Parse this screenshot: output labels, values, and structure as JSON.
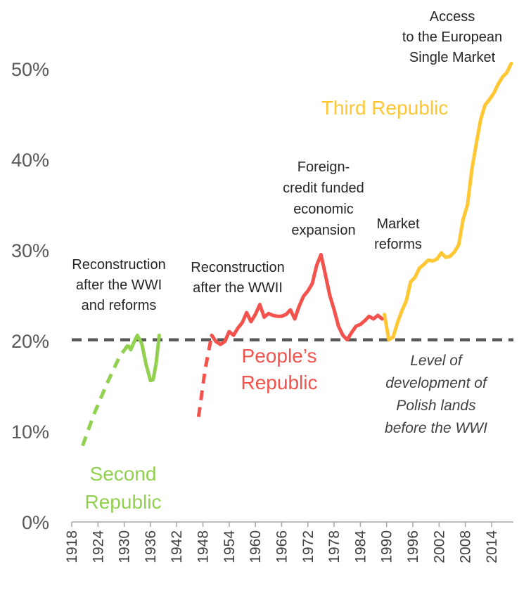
{
  "chart_data": {
    "type": "line",
    "ylim": [
      0,
      52
    ],
    "xlim": [
      1918,
      2019
    ],
    "y_ticks": [
      "0%",
      "10%",
      "20%",
      "30%",
      "40%",
      "50%"
    ],
    "y_tick_values": [
      0,
      10,
      20,
      30,
      40,
      50
    ],
    "x_ticks": [
      "1918",
      "1924",
      "1930",
      "1936",
      "1942",
      "1948",
      "1954",
      "1960",
      "1966",
      "1972",
      "1978",
      "1984",
      "1990",
      "1996",
      "2002",
      "2008",
      "2014"
    ],
    "x_tick_values": [
      1918,
      1924,
      1930,
      1936,
      1942,
      1948,
      1954,
      1960,
      1966,
      1972,
      1978,
      1984,
      1990,
      1996,
      2002,
      2008,
      2014
    ],
    "reference_line": {
      "y": 20.1,
      "label": [
        "Level of",
        "development of",
        "Polish lands",
        "before the WWI"
      ],
      "color": "#595959"
    },
    "series": [
      {
        "name": "Second Republic",
        "color": "#92D050",
        "label_lines": [
          "Second",
          "Republic"
        ],
        "dashed": [
          [
            1920.5,
            8.4
          ],
          [
            1923,
            11.8
          ],
          [
            1926,
            15.2
          ],
          [
            1929,
            18.3
          ],
          [
            1931,
            19.6
          ]
        ],
        "solid": [
          [
            1931,
            19.4
          ],
          [
            1931.5,
            19.0
          ],
          [
            1932.2,
            19.8
          ],
          [
            1933,
            20.6
          ],
          [
            1934,
            19.7
          ],
          [
            1935,
            17.4
          ],
          [
            1936,
            15.6
          ],
          [
            1936.6,
            15.7
          ],
          [
            1937.3,
            17.5
          ],
          [
            1938,
            20.6
          ]
        ]
      },
      {
        "name": "People's Republic",
        "color": "#F4524D",
        "label_lines": [
          "People’s",
          "Republic"
        ],
        "dashed": [
          [
            1947,
            11.6
          ],
          [
            1948.5,
            16.8
          ],
          [
            1950,
            20.6
          ]
        ],
        "solid": [
          [
            1950,
            20.6
          ],
          [
            1951,
            19.9
          ],
          [
            1952,
            19.6
          ],
          [
            1953,
            19.9
          ],
          [
            1954,
            21.0
          ],
          [
            1955,
            20.6
          ],
          [
            1956,
            21.4
          ],
          [
            1957,
            22.0
          ],
          [
            1958,
            23.1
          ],
          [
            1959,
            22.1
          ],
          [
            1960,
            22.9
          ],
          [
            1961,
            24.0
          ],
          [
            1962,
            22.6
          ],
          [
            1963,
            23.0
          ],
          [
            1964,
            22.8
          ],
          [
            1965,
            22.7
          ],
          [
            1966,
            22.7
          ],
          [
            1967,
            22.9
          ],
          [
            1968,
            23.4
          ],
          [
            1969,
            22.4
          ],
          [
            1970,
            23.8
          ],
          [
            1971,
            24.9
          ],
          [
            1972,
            25.5
          ],
          [
            1973,
            26.3
          ],
          [
            1974,
            28.3
          ],
          [
            1975,
            29.5
          ],
          [
            1976,
            27.3
          ],
          [
            1977,
            25.0
          ],
          [
            1978,
            23.4
          ],
          [
            1979,
            21.6
          ],
          [
            1980,
            20.6
          ],
          [
            1981,
            20.1
          ],
          [
            1982,
            20.9
          ],
          [
            1983,
            21.6
          ],
          [
            1984,
            21.8
          ],
          [
            1985,
            22.2
          ],
          [
            1986,
            22.7
          ],
          [
            1987,
            22.4
          ],
          [
            1988,
            22.8
          ],
          [
            1989,
            22.4
          ]
        ]
      },
      {
        "name": "Third Republic",
        "color": "#FFC733",
        "label_lines": [
          "Third Republic"
        ],
        "solid": [
          [
            1989.5,
            22.9
          ],
          [
            1990.5,
            20.1
          ],
          [
            1991.5,
            20.4
          ],
          [
            1992.5,
            22.0
          ],
          [
            1993.5,
            23.3
          ],
          [
            1994.5,
            24.4
          ],
          [
            1995.5,
            26.5
          ],
          [
            1996.5,
            27.0
          ],
          [
            1997.5,
            28.0
          ],
          [
            1998.5,
            28.4
          ],
          [
            1999.5,
            28.9
          ],
          [
            2000.5,
            28.8
          ],
          [
            2001.5,
            29.0
          ],
          [
            2002.5,
            29.7
          ],
          [
            2003.5,
            29.2
          ],
          [
            2004.5,
            29.3
          ],
          [
            2005.5,
            29.8
          ],
          [
            2006.5,
            30.6
          ],
          [
            2007.5,
            33.4
          ],
          [
            2008.5,
            35.0
          ],
          [
            2009.5,
            38.9
          ],
          [
            2010.5,
            41.7
          ],
          [
            2011.5,
            44.4
          ],
          [
            2012.5,
            46.0
          ],
          [
            2013.5,
            46.6
          ],
          [
            2014.5,
            47.3
          ],
          [
            2015.5,
            48.3
          ],
          [
            2016.5,
            49.1
          ],
          [
            2017.5,
            49.6
          ],
          [
            2018.5,
            50.6
          ]
        ]
      }
    ],
    "annotations": [
      {
        "id": "wwi-reconstruction",
        "lines": [
          "Reconstruction",
          "after the WWI",
          "and reforms"
        ]
      },
      {
        "id": "wwii-reconstruction",
        "lines": [
          "Reconstruction",
          "after the WWII"
        ]
      },
      {
        "id": "foreign-credit",
        "lines": [
          "Foreign-",
          "credit funded",
          "economic",
          "expansion"
        ]
      },
      {
        "id": "market-reforms",
        "lines": [
          "Market",
          "reforms"
        ]
      },
      {
        "id": "single-market",
        "lines": [
          "Access",
          "to the European",
          "Single Market"
        ]
      }
    ]
  }
}
